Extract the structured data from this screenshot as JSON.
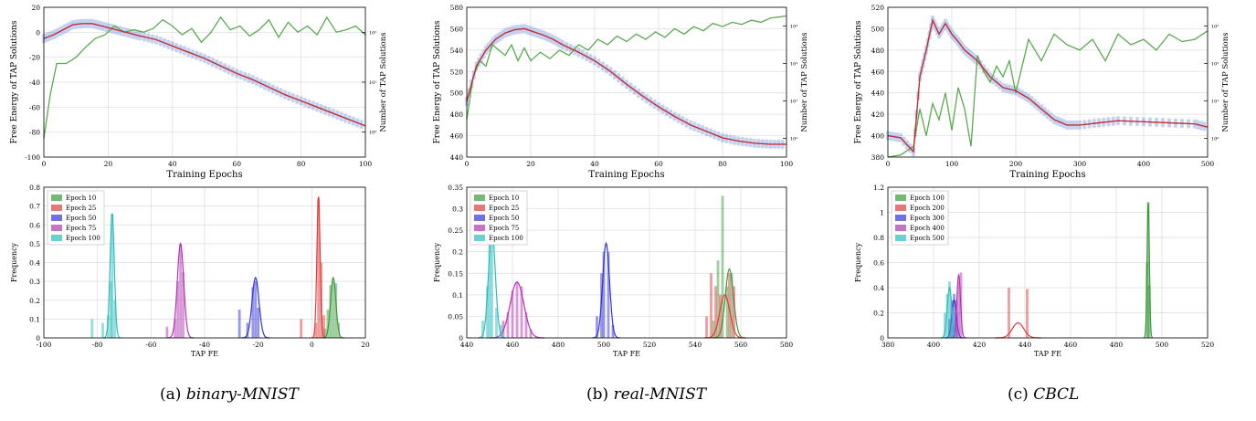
{
  "captions": [
    {
      "prefix": "(a)",
      "name": "binary-MNIST"
    },
    {
      "prefix": "(b)",
      "name": "real-MNIST"
    },
    {
      "prefix": "(c)",
      "name": "CBCL"
    }
  ],
  "colors": {
    "fe_points": "#5b7fd9",
    "fe_mean": "#c03030",
    "num_solutions": "#5aaa50"
  },
  "chart_data": [
    {
      "id": "binary-fe",
      "type": "line",
      "xlabel": "Training Epochs",
      "ylabel": "Free Energy of TAP Solutions",
      "y2label": "Number of TAP Solutions",
      "xlim": [
        0,
        100
      ],
      "ylim": [
        -100,
        20
      ],
      "xticks": [
        0,
        20,
        40,
        60,
        80,
        100
      ],
      "yticks": [
        -100,
        -80,
        -60,
        -40,
        -20,
        0,
        20
      ],
      "y2ticks": [
        "10⁰",
        "10¹",
        "10²"
      ],
      "grid": true,
      "series": [
        {
          "kind": "mean",
          "x": [
            0,
            3,
            6,
            9,
            12,
            15,
            18,
            21,
            24,
            27,
            30,
            35,
            40,
            45,
            50,
            55,
            60,
            65,
            70,
            75,
            80,
            85,
            90,
            95,
            100
          ],
          "y": [
            -5,
            -2,
            2,
            6,
            7,
            7,
            5,
            3,
            1,
            -1,
            -3,
            -6,
            -11,
            -16,
            -21,
            -27,
            -33,
            -38,
            -44,
            -50,
            -55,
            -60,
            -65,
            -70,
            -75
          ]
        },
        {
          "kind": "count",
          "x": [
            0,
            2,
            4,
            7,
            10,
            13,
            16,
            19,
            22,
            25,
            28,
            31,
            34,
            37,
            40,
            43,
            46,
            49,
            52,
            55,
            58,
            61,
            64,
            67,
            70,
            73,
            76,
            79,
            82,
            85,
            88,
            91,
            94,
            97,
            100
          ],
          "y": [
            -85,
            -50,
            -25,
            -25,
            -20,
            -12,
            -5,
            -2,
            5,
            0,
            2,
            0,
            3,
            10,
            5,
            -2,
            3,
            -8,
            0,
            12,
            2,
            5,
            -3,
            2,
            10,
            -4,
            8,
            0,
            5,
            -2,
            12,
            0,
            2,
            5,
            -2
          ]
        }
      ]
    },
    {
      "id": "binary-hist",
      "type": "histogram",
      "xlabel": "TAP FE",
      "ylabel": "Frequency",
      "xlim": [
        -100,
        20
      ],
      "ylim": [
        0,
        0.8
      ],
      "xticks": [
        -100,
        -80,
        -60,
        -40,
        -20,
        0,
        20
      ],
      "yticks": [
        0,
        0.1,
        0.2,
        0.3,
        0.4,
        0.5,
        0.6,
        0.7,
        0.8
      ],
      "legend_position": "top-left",
      "grid": true,
      "series": [
        {
          "name": "Epoch 10",
          "color": "#3c9a3c",
          "center": 8,
          "sd": 1.0,
          "peak": 0.32,
          "hist": [
            [
              5,
              0.05
            ],
            [
              6,
              0.15
            ],
            [
              7,
              0.28
            ],
            [
              8,
              0.3
            ],
            [
              9,
              0.29
            ],
            [
              10,
              0.08
            ]
          ]
        },
        {
          "name": "Epoch 25",
          "color": "#e03c3c",
          "center": 2.5,
          "sd": 0.6,
          "peak": 0.75,
          "hist": [
            [
              -4,
              0.1
            ],
            [
              1.5,
              0.08
            ],
            [
              2.5,
              0.74
            ],
            [
              3.5,
              0.4
            ],
            [
              4.5,
              0.12
            ]
          ]
        },
        {
          "name": "Epoch 50",
          "color": "#3434d8",
          "center": -21,
          "sd": 1.3,
          "peak": 0.32,
          "hist": [
            [
              -27,
              0.15
            ],
            [
              -24,
              0.08
            ],
            [
              -22,
              0.27
            ],
            [
              -21,
              0.3
            ],
            [
              -20,
              0.16
            ]
          ]
        },
        {
          "name": "Epoch 75",
          "color": "#b434b4",
          "center": -49,
          "sd": 1.2,
          "peak": 0.5,
          "hist": [
            [
              -54,
              0.06
            ],
            [
              -51,
              0.1
            ],
            [
              -50,
              0.3
            ],
            [
              -49,
              0.5
            ],
            [
              -48,
              0.35
            ]
          ]
        },
        {
          "name": "Epoch 100",
          "color": "#2cbcbc",
          "center": -74.5,
          "sd": 0.8,
          "peak": 0.66,
          "hist": [
            [
              -82,
              0.1
            ],
            [
              -78,
              0.08
            ],
            [
              -76,
              0.12
            ],
            [
              -75,
              0.3
            ],
            [
              -74.5,
              0.66
            ],
            [
              -73.5,
              0.2
            ]
          ]
        }
      ]
    },
    {
      "id": "real-fe",
      "type": "line",
      "xlabel": "Training Epochs",
      "ylabel": "Free Energy of TAP Solutions",
      "y2label": "Number of TAP Solutions",
      "xlim": [
        0,
        100
      ],
      "ylim": [
        440,
        580
      ],
      "xticks": [
        0,
        20,
        40,
        60,
        80,
        100
      ],
      "yticks": [
        440,
        460,
        480,
        500,
        520,
        540,
        560,
        580
      ],
      "y2ticks": [
        "10⁰",
        "10¹",
        "10²",
        "10³"
      ],
      "grid": true,
      "series": [
        {
          "kind": "mean",
          "x": [
            0,
            3,
            6,
            9,
            12,
            15,
            18,
            21,
            24,
            27,
            30,
            35,
            40,
            45,
            50,
            55,
            60,
            65,
            70,
            75,
            80,
            85,
            90,
            95,
            100
          ],
          "y": [
            492,
            525,
            540,
            550,
            556,
            559,
            560,
            557,
            554,
            550,
            545,
            538,
            530,
            520,
            508,
            497,
            487,
            478,
            470,
            464,
            458,
            455,
            453,
            452,
            452
          ]
        },
        {
          "kind": "count",
          "x": [
            0,
            2,
            4,
            6,
            8,
            10,
            12,
            14,
            16,
            18,
            20,
            23,
            26,
            29,
            32,
            35,
            38,
            41,
            44,
            47,
            50,
            53,
            56,
            59,
            62,
            65,
            68,
            71,
            74,
            77,
            80,
            83,
            86,
            89,
            92,
            95,
            98,
            100
          ],
          "y": [
            475,
            515,
            530,
            525,
            545,
            540,
            535,
            545,
            530,
            542,
            530,
            538,
            532,
            540,
            535,
            545,
            540,
            550,
            545,
            553,
            548,
            555,
            550,
            557,
            552,
            560,
            555,
            562,
            558,
            565,
            562,
            566,
            564,
            568,
            566,
            570,
            571,
            572
          ]
        }
      ]
    },
    {
      "id": "real-hist",
      "type": "histogram",
      "xlabel": "TAP FE",
      "ylabel": "Frequency",
      "xlim": [
        440,
        580
      ],
      "ylim": [
        0,
        0.35
      ],
      "xticks": [
        440,
        460,
        480,
        500,
        520,
        540,
        560,
        580
      ],
      "yticks": [
        0,
        0.05,
        0.1,
        0.15,
        0.2,
        0.25,
        0.3,
        0.35
      ],
      "legend_position": "top-left",
      "grid": true,
      "series": [
        {
          "name": "Epoch 10",
          "color": "#3c9a3c",
          "center": 555,
          "sd": 1.8,
          "peak": 0.16,
          "hist": [
            [
              548,
              0.04
            ],
            [
              550,
              0.18
            ],
            [
              552,
              0.33
            ],
            [
              554,
              0.12
            ],
            [
              556,
              0.15
            ]
          ]
        },
        {
          "name": "Epoch 25",
          "color": "#e03c3c",
          "center": 553,
          "sd": 2.2,
          "peak": 0.1,
          "hist": [
            [
              545,
              0.05
            ],
            [
              547,
              0.15
            ],
            [
              549,
              0.12
            ],
            [
              551,
              0.1
            ],
            [
              555,
              0.15
            ],
            [
              557,
              0.12
            ]
          ]
        },
        {
          "name": "Epoch 50",
          "color": "#3434d8",
          "center": 501,
          "sd": 1.5,
          "peak": 0.22,
          "hist": [
            [
              497,
              0.05
            ],
            [
              499,
              0.15
            ],
            [
              500,
              0.2
            ],
            [
              502,
              0.2
            ],
            [
              504,
              0.03
            ]
          ]
        },
        {
          "name": "Epoch 75",
          "color": "#b434b4",
          "center": 462,
          "sd": 3.0,
          "peak": 0.13,
          "hist": [
            [
              456,
              0.04
            ],
            [
              458,
              0.06
            ],
            [
              460,
              0.11
            ],
            [
              462,
              0.13
            ],
            [
              464,
              0.12
            ],
            [
              466,
              0.06
            ],
            [
              468,
              0.02
            ]
          ]
        },
        {
          "name": "Epoch 100",
          "color": "#2cbcbc",
          "center": 451,
          "sd": 1.5,
          "peak": 0.25,
          "hist": [
            [
              447,
              0.04
            ],
            [
              449,
              0.12
            ],
            [
              450,
              0.29
            ],
            [
              451,
              0.22
            ],
            [
              453,
              0.07
            ],
            [
              455,
              0.03
            ]
          ]
        }
      ]
    },
    {
      "id": "cbcl-fe",
      "type": "line",
      "xlabel": "Training Epochs",
      "ylabel": "Free Energy of TAP Solutions",
      "y2label": "Number of TAP Solutions",
      "xlim": [
        0,
        500
      ],
      "ylim": [
        380,
        520
      ],
      "xticks": [
        0,
        100,
        200,
        300,
        400,
        500
      ],
      "yticks": [
        380,
        400,
        420,
        440,
        460,
        480,
        500,
        520
      ],
      "y2ticks": [
        "10⁰",
        "10¹",
        "10²",
        "10³"
      ],
      "grid": true,
      "series": [
        {
          "kind": "mean",
          "x": [
            0,
            20,
            40,
            50,
            60,
            70,
            80,
            90,
            100,
            110,
            120,
            130,
            140,
            160,
            180,
            200,
            220,
            240,
            260,
            280,
            300,
            330,
            360,
            400,
            440,
            480,
            500
          ],
          "y": [
            400,
            398,
            385,
            455,
            480,
            508,
            495,
            505,
            495,
            488,
            480,
            475,
            470,
            455,
            445,
            442,
            435,
            425,
            415,
            410,
            410,
            412,
            414,
            413,
            412,
            411,
            408
          ]
        },
        {
          "kind": "count",
          "x": [
            0,
            20,
            40,
            50,
            60,
            70,
            80,
            90,
            100,
            110,
            120,
            130,
            140,
            150,
            160,
            170,
            180,
            190,
            200,
            220,
            240,
            260,
            280,
            300,
            320,
            340,
            360,
            380,
            400,
            420,
            440,
            460,
            480,
            500
          ],
          "y": [
            380,
            382,
            390,
            425,
            400,
            430,
            415,
            440,
            405,
            445,
            425,
            390,
            475,
            460,
            450,
            465,
            455,
            470,
            440,
            490,
            470,
            495,
            485,
            480,
            490,
            470,
            495,
            485,
            490,
            480,
            495,
            488,
            490,
            498
          ]
        }
      ]
    },
    {
      "id": "cbcl-hist",
      "type": "histogram",
      "xlabel": "TAP FE",
      "ylabel": "Frequency",
      "xlim": [
        380,
        520
      ],
      "ylim": [
        0,
        1.2
      ],
      "xticks": [
        380,
        400,
        420,
        440,
        460,
        480,
        500,
        520
      ],
      "yticks": [
        0,
        0.2,
        0.4,
        0.6,
        0.8,
        1.0,
        1.2
      ],
      "legend_position": "top-left",
      "grid": true,
      "series": [
        {
          "name": "Epoch 100",
          "color": "#3c9a3c",
          "center": 494,
          "sd": 0.5,
          "peak": 1.08,
          "hist": [
            [
              493.5,
              0.6
            ],
            [
              494,
              1.08
            ],
            [
              494.5,
              0.42
            ]
          ]
        },
        {
          "name": "Epoch 200",
          "color": "#e03c3c",
          "center": 437,
          "sd": 2.5,
          "peak": 0.12,
          "hist": [
            [
              433,
              0.4
            ],
            [
              441,
              0.39
            ]
          ]
        },
        {
          "name": "Epoch 300",
          "color": "#3434d8",
          "center": 409,
          "sd": 1.0,
          "peak": 0.3,
          "hist": [
            [
              407,
              0.15
            ],
            [
              408,
              0.3
            ],
            [
              409,
              0.35
            ],
            [
              410,
              0.2
            ]
          ]
        },
        {
          "name": "Epoch 400",
          "color": "#b434b4",
          "center": 411,
          "sd": 0.8,
          "peak": 0.5,
          "hist": [
            [
              410,
              0.3
            ],
            [
              411,
              0.45
            ],
            [
              412,
              0.52
            ]
          ]
        },
        {
          "name": "Epoch 500",
          "color": "#2cbcbc",
          "center": 407,
          "sd": 1.0,
          "peak": 0.4,
          "hist": [
            [
              405,
              0.2
            ],
            [
              406,
              0.35
            ],
            [
              407,
              0.45
            ],
            [
              408,
              0.25
            ]
          ]
        }
      ]
    }
  ]
}
